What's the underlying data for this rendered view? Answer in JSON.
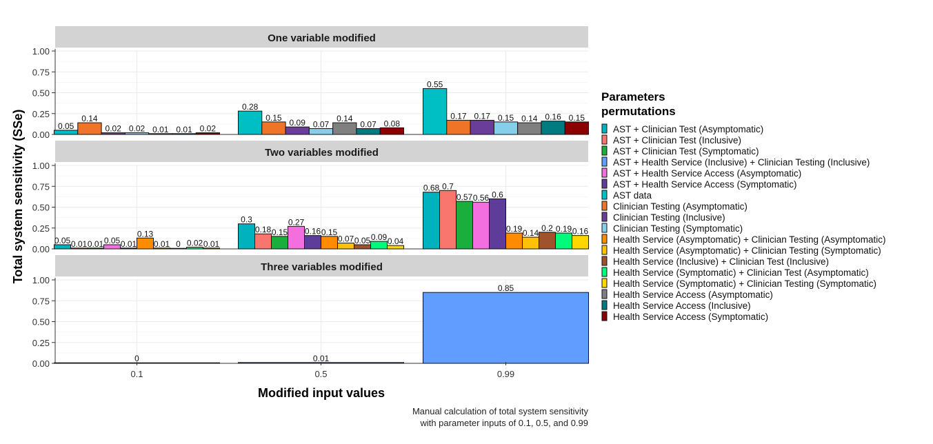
{
  "chart_data": {
    "type": "bar",
    "title": "",
    "xlabel": "Modified input values",
    "ylabel": "Total system sensitivity (SSe)",
    "caption_line1": "Manual calculation of total system sensitivity",
    "caption_line2": "with parameter inputs of 0.1, 0.5, and 0.99",
    "legend_title_line1": "Parameters",
    "legend_title_line2": "permutations",
    "legend_position": "right",
    "grid": true,
    "categories": [
      "0.1",
      "0.5",
      "0.99"
    ],
    "ylim": [
      0,
      1
    ],
    "yticks": [
      "0.00",
      "0.25",
      "0.50",
      "0.75",
      "1.00"
    ],
    "legend": [
      {
        "label": "AST + Clinician Test (Asymptomatic)",
        "color": "#00B2BE"
      },
      {
        "label": "AST + Clinician Test (Inclusive)",
        "color": "#F8766D"
      },
      {
        "label": "AST + Clinician Test (Symptomatic)",
        "color": "#1AAF3C"
      },
      {
        "label": "AST + Health Service (Inclusive) + Clinician Testing (Inclusive)",
        "color": "#619CFF"
      },
      {
        "label": "AST + Health Service Access (Asymptomatic)",
        "color": "#F36FE0"
      },
      {
        "label": "AST + Health Service Access (Symptomatic)",
        "color": "#5E3C99"
      },
      {
        "label": "AST data",
        "color": "#00BFC4"
      },
      {
        "label": "Clinician Testing (Asymptomatic)",
        "color": "#F07427"
      },
      {
        "label": "Clinician Testing (Inclusive)",
        "color": "#6A3D9A"
      },
      {
        "label": "Clinician Testing (Symptomatic)",
        "color": "#87CEEB"
      },
      {
        "label": "Health Service (Asymptomatic) + Clinician Testing (Asymptomatic)",
        "color": "#FF8C00"
      },
      {
        "label": "Health Service (Asymptomatic) + Clinician Testing (Symptomatic)",
        "color": "#FFC107"
      },
      {
        "label": "Health Service (Inclusive) + Clinician Test (Inclusive)",
        "color": "#A0522D"
      },
      {
        "label": "Health Service (Symptomatic) + Clinician Test (Asymptomatic)",
        "color": "#00FA7A"
      },
      {
        "label": "Health Service (Symptomatic) + Clinician Testing (Symptomatic)",
        "color": "#FFD700"
      },
      {
        "label": "Health Service Access (Asymptomatic)",
        "color": "#808080"
      },
      {
        "label": "Health Service Access (Inclusive)",
        "color": "#007B7F"
      },
      {
        "label": "Health Service Access (Symptomatic)",
        "color": "#8B0000"
      }
    ],
    "panels": [
      {
        "title": "One variable modified",
        "groups": [
          {
            "category": "0.1",
            "bars": [
              {
                "s": 6,
                "v": 0.05,
                "label": "0.05"
              },
              {
                "s": 7,
                "v": 0.14,
                "label": "0.14"
              },
              {
                "s": 8,
                "v": 0.02,
                "label": "0.02"
              },
              {
                "s": 9,
                "v": 0.02,
                "label": "0.02"
              },
              {
                "s": 15,
                "v": 0.01,
                "label": "0.01"
              },
              {
                "s": 16,
                "v": 0.01,
                "label": "0.01"
              },
              {
                "s": 17,
                "v": 0.02,
                "label": "0.02"
              }
            ]
          },
          {
            "category": "0.5",
            "bars": [
              {
                "s": 6,
                "v": 0.28,
                "label": "0.28"
              },
              {
                "s": 7,
                "v": 0.15,
                "label": "0.15"
              },
              {
                "s": 8,
                "v": 0.09,
                "label": "0.09"
              },
              {
                "s": 9,
                "v": 0.07,
                "label": "0.07"
              },
              {
                "s": 15,
                "v": 0.14,
                "label": "0.14"
              },
              {
                "s": 16,
                "v": 0.07,
                "label": "0.07"
              },
              {
                "s": 17,
                "v": 0.08,
                "label": "0.08"
              }
            ]
          },
          {
            "category": "0.99",
            "bars": [
              {
                "s": 6,
                "v": 0.55,
                "label": "0.55"
              },
              {
                "s": 7,
                "v": 0.17,
                "label": "0.17"
              },
              {
                "s": 8,
                "v": 0.17,
                "label": "0.17"
              },
              {
                "s": 9,
                "v": 0.15,
                "label": "0.15"
              },
              {
                "s": 15,
                "v": 0.14,
                "label": "0.14"
              },
              {
                "s": 16,
                "v": 0.16,
                "label": "0.16"
              },
              {
                "s": 17,
                "v": 0.15,
                "label": "0.15"
              }
            ]
          }
        ]
      },
      {
        "title": "Two variables modified",
        "groups": [
          {
            "category": "0.1",
            "bars": [
              {
                "s": 0,
                "v": 0.05,
                "label": "0.05"
              },
              {
                "s": 1,
                "v": 0.01,
                "label": "0.01"
              },
              {
                "s": 2,
                "v": 0.01,
                "label": "0.01"
              },
              {
                "s": 4,
                "v": 0.05,
                "label": "0.05"
              },
              {
                "s": 5,
                "v": 0.01,
                "label": "0.01"
              },
              {
                "s": 10,
                "v": 0.13,
                "label": "0.13"
              },
              {
                "s": 11,
                "v": 0.01,
                "label": "0.01"
              },
              {
                "s": 12,
                "v": 0,
                "label": "0"
              },
              {
                "s": 13,
                "v": 0.02,
                "label": "0.02"
              },
              {
                "s": 14,
                "v": 0.01,
                "label": "0.01"
              }
            ]
          },
          {
            "category": "0.5",
            "bars": [
              {
                "s": 0,
                "v": 0.3,
                "label": "0.3"
              },
              {
                "s": 1,
                "v": 0.18,
                "label": "0.18"
              },
              {
                "s": 2,
                "v": 0.15,
                "label": "0.15"
              },
              {
                "s": 4,
                "v": 0.27,
                "label": "0.27"
              },
              {
                "s": 5,
                "v": 0.16,
                "label": "0.16"
              },
              {
                "s": 10,
                "v": 0.15,
                "label": "0.15"
              },
              {
                "s": 11,
                "v": 0.07,
                "label": "0.07"
              },
              {
                "s": 12,
                "v": 0.05,
                "label": "0.05"
              },
              {
                "s": 13,
                "v": 0.09,
                "label": "0.09"
              },
              {
                "s": 14,
                "v": 0.04,
                "label": "0.04"
              }
            ]
          },
          {
            "category": "0.99",
            "bars": [
              {
                "s": 0,
                "v": 0.68,
                "label": "0.68"
              },
              {
                "s": 1,
                "v": 0.7,
                "label": "0.7"
              },
              {
                "s": 2,
                "v": 0.57,
                "label": "0.57"
              },
              {
                "s": 4,
                "v": 0.56,
                "label": "0.56"
              },
              {
                "s": 5,
                "v": 0.6,
                "label": "0.6"
              },
              {
                "s": 10,
                "v": 0.19,
                "label": "0.19"
              },
              {
                "s": 11,
                "v": 0.14,
                "label": "0.14"
              },
              {
                "s": 12,
                "v": 0.2,
                "label": "0.2"
              },
              {
                "s": 13,
                "v": 0.19,
                "label": "0.19"
              },
              {
                "s": 14,
                "v": 0.16,
                "label": "0.16"
              }
            ]
          }
        ]
      },
      {
        "title": "Three variables modified",
        "groups": [
          {
            "category": "0.1",
            "bars": [
              {
                "s": 3,
                "v": 0,
                "label": "0"
              }
            ]
          },
          {
            "category": "0.5",
            "bars": [
              {
                "s": 3,
                "v": 0.01,
                "label": "0.01"
              }
            ]
          },
          {
            "category": "0.99",
            "bars": [
              {
                "s": 3,
                "v": 0.85,
                "label": "0.85"
              }
            ]
          }
        ]
      }
    ]
  }
}
